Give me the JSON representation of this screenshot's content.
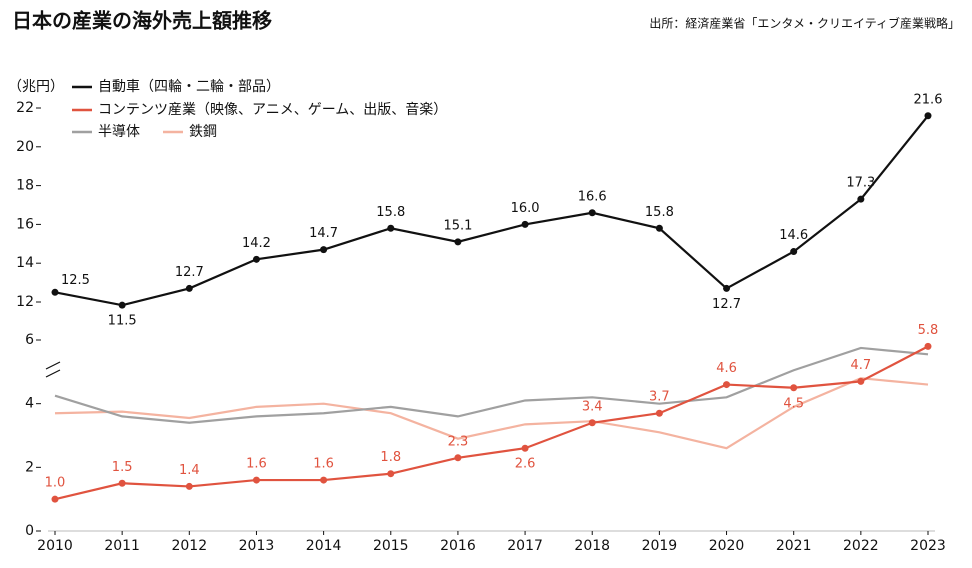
{
  "chart_data": {
    "type": "line",
    "title": "日本の産業の海外売上額推移",
    "source": "出所：経済産業省「エンタメ・クリエイティブ産業戦略」",
    "y_label": "（兆円）",
    "x": [
      2010,
      2011,
      2012,
      2013,
      2014,
      2015,
      2016,
      2017,
      2018,
      2019,
      2020,
      2021,
      2022,
      2023
    ],
    "xlim": [
      2010,
      2023
    ],
    "xticks": [
      2010,
      2011,
      2012,
      2013,
      2014,
      2015,
      2016,
      2017,
      2018,
      2019,
      2020,
      2021,
      2022,
      2023
    ],
    "ylim": [
      0,
      22
    ],
    "y_break": [
      6,
      12
    ],
    "yticks": [
      0,
      2,
      4,
      6,
      12,
      14,
      16,
      18,
      20,
      22
    ],
    "series": [
      {
        "name": "自動車（四輪・二輪・部品）",
        "color": "#111111",
        "values": [
          12.5,
          11.5,
          12.7,
          14.2,
          14.7,
          15.8,
          15.1,
          16.0,
          16.6,
          15.8,
          12.7,
          14.6,
          17.3,
          21.6
        ],
        "value_labels": [
          "12.5",
          "11.5",
          "12.7",
          "14.2",
          "14.7",
          "15.8",
          "15.1",
          "16.0",
          "16.6",
          "15.8",
          "12.7",
          "14.6",
          "17.3",
          "21.6"
        ]
      },
      {
        "name": "コンテンツ産業（映像、アニメ、ゲーム、出版、音楽）",
        "color": "#e0533f",
        "values": [
          1.0,
          1.5,
          1.4,
          1.6,
          1.6,
          1.8,
          2.3,
          2.6,
          3.4,
          3.7,
          4.6,
          4.5,
          4.7,
          5.8
        ],
        "value_labels": [
          "1.0",
          "1.5",
          "1.4",
          "1.6",
          "1.6",
          "1.8",
          "2.3",
          "2.6",
          "3.4",
          "3.7",
          "4.6",
          "4.5",
          "4.7",
          "5.8"
        ]
      },
      {
        "name": "半導体",
        "color": "#a0a0a0",
        "values": [
          4.25,
          3.6,
          3.4,
          3.6,
          3.7,
          3.9,
          3.6,
          4.1,
          4.2,
          4.0,
          4.2,
          5.05,
          5.75,
          5.55
        ]
      },
      {
        "name": "鉄鋼",
        "color": "#f4b3a0",
        "values": [
          3.7,
          3.75,
          3.55,
          3.9,
          4.0,
          3.7,
          2.9,
          3.35,
          3.45,
          3.1,
          2.6,
          3.9,
          4.8,
          4.6
        ]
      }
    ]
  }
}
